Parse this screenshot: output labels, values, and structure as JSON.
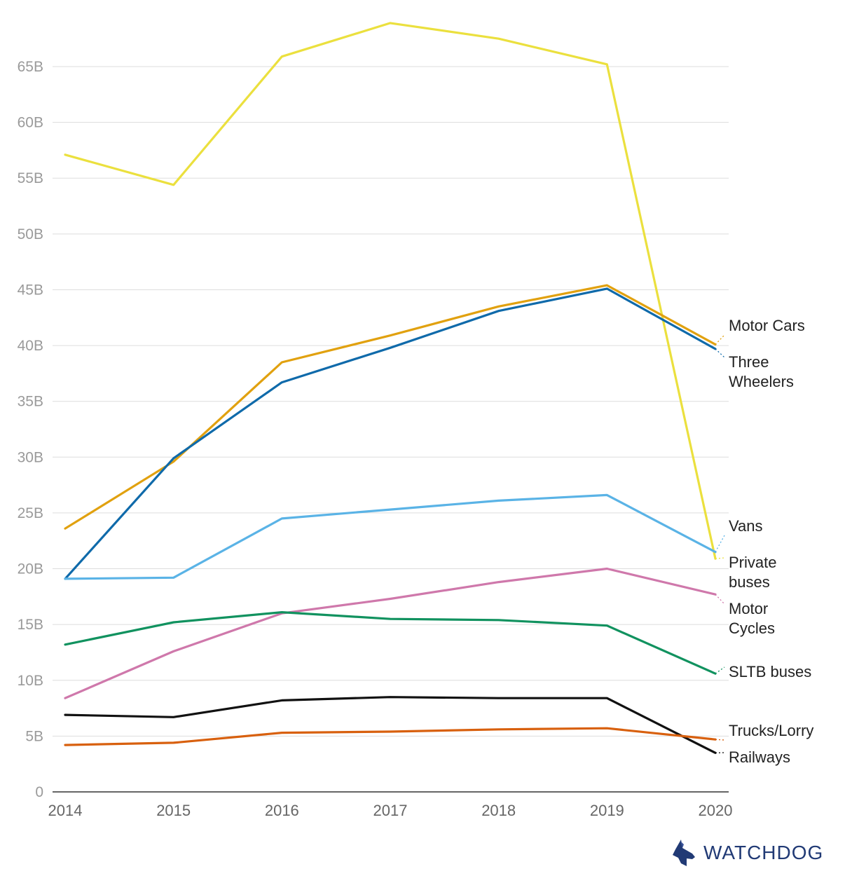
{
  "chart_data": {
    "type": "line",
    "x": [
      "2014",
      "2015",
      "2016",
      "2017",
      "2018",
      "2019",
      "2020"
    ],
    "y_ticks": [
      "0",
      "5B",
      "10B",
      "15B",
      "20B",
      "25B",
      "30B",
      "35B",
      "40B",
      "45B",
      "50B",
      "55B",
      "60B",
      "65B"
    ],
    "ylim": [
      0,
      70
    ],
    "grid": true,
    "legend": "direct labels at line ends (right)",
    "series": [
      {
        "name": "Private buses",
        "label_lines": [
          "Private",
          "buses"
        ],
        "color": "#ebe03e",
        "values": [
          57.1,
          54.4,
          65.9,
          68.9,
          67.5,
          65.2,
          20.9
        ]
      },
      {
        "name": "Motor Cars",
        "label_lines": [
          "Motor Cars"
        ],
        "color": "#e1a10f",
        "values": [
          23.6,
          29.6,
          38.5,
          40.9,
          43.5,
          45.4,
          40.1
        ]
      },
      {
        "name": "Three Wheelers",
        "label_lines": [
          "Three",
          "Wheelers"
        ],
        "color": "#0f6aaa",
        "values": [
          19.1,
          29.9,
          36.7,
          39.8,
          43.1,
          45.1,
          39.7
        ]
      },
      {
        "name": "Vans",
        "label_lines": [
          "Vans"
        ],
        "color": "#5ab3e6",
        "values": [
          19.1,
          19.2,
          24.5,
          25.3,
          26.1,
          26.6,
          21.5
        ]
      },
      {
        "name": "Motor Cycles",
        "label_lines": [
          "Motor",
          "Cycles"
        ],
        "color": "#cf78ab",
        "values": [
          8.4,
          12.6,
          16.0,
          17.3,
          18.8,
          20.0,
          17.7
        ]
      },
      {
        "name": "SLTB buses",
        "label_lines": [
          "SLTB buses"
        ],
        "color": "#11925f",
        "values": [
          13.2,
          15.2,
          16.1,
          15.5,
          15.4,
          14.9,
          10.6
        ]
      },
      {
        "name": "Railways",
        "label_lines": [
          "Railways"
        ],
        "color": "#111111",
        "values": [
          6.9,
          6.7,
          8.2,
          8.5,
          8.4,
          8.4,
          3.5
        ]
      },
      {
        "name": "Trucks/Lorry",
        "label_lines": [
          "Trucks/Lorry"
        ],
        "color": "#d8600e",
        "values": [
          4.2,
          4.4,
          5.3,
          5.4,
          5.6,
          5.7,
          4.7
        ]
      }
    ]
  },
  "branding": {
    "name": "WATCHDOG",
    "icon": "dog-head-icon",
    "color": "#213a75"
  }
}
